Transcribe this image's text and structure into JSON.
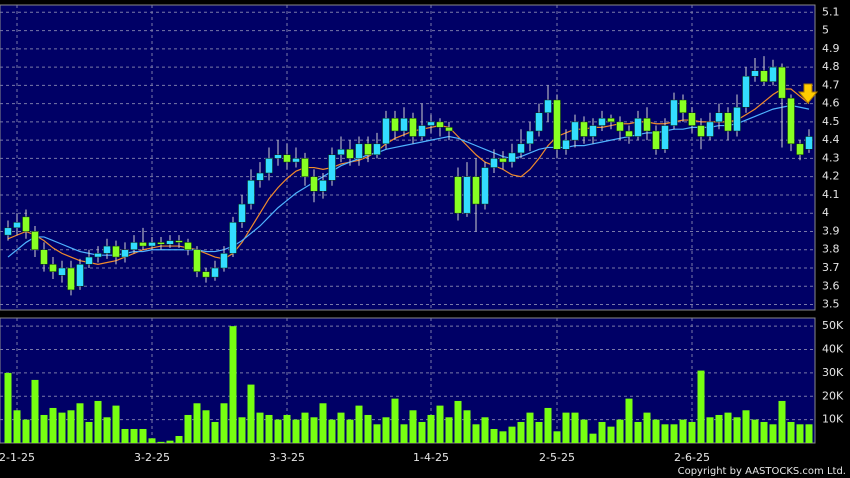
{
  "chart_data": [
    {
      "type": "candlestick",
      "up_color": "#33ddff",
      "down_color": "#88ff22",
      "grid": true,
      "open": [
        3.88,
        3.92,
        3.98,
        3.9,
        3.8,
        3.72,
        3.66,
        3.7,
        3.6,
        3.72,
        3.76,
        3.78,
        3.82,
        3.76,
        3.8,
        3.84,
        3.82,
        3.84,
        3.83,
        3.85,
        3.84,
        3.8,
        3.68,
        3.65,
        3.7,
        3.78,
        3.95,
        4.05,
        4.18,
        4.22,
        4.3,
        4.32,
        4.28,
        4.3,
        4.2,
        4.12,
        4.18,
        4.32,
        4.35,
        4.3,
        4.38,
        4.32,
        4.38,
        4.52,
        4.45,
        4.52,
        4.42,
        4.48,
        4.5,
        4.47,
        4.2,
        4.0,
        4.2,
        4.05,
        4.25,
        4.3,
        4.28,
        4.33,
        4.38,
        4.45,
        4.55,
        4.62,
        4.35,
        4.4,
        4.5,
        4.42,
        4.48,
        4.52,
        4.5,
        4.45,
        4.42,
        4.52,
        4.45,
        4.35,
        4.48,
        4.62,
        4.55,
        4.48,
        4.42,
        4.5,
        4.55,
        4.45,
        4.58,
        4.75,
        4.78,
        4.72,
        4.8,
        4.63,
        4.38,
        4.35
      ],
      "high": [
        3.96,
        4.0,
        4.02,
        3.93,
        3.84,
        3.76,
        3.74,
        3.74,
        3.75,
        3.8,
        3.82,
        3.86,
        3.85,
        3.84,
        3.88,
        3.92,
        3.87,
        3.87,
        3.88,
        3.88,
        3.86,
        3.82,
        3.7,
        3.74,
        3.82,
        3.98,
        4.1,
        4.24,
        4.28,
        4.36,
        4.4,
        4.38,
        4.36,
        4.33,
        4.24,
        4.22,
        4.36,
        4.42,
        4.4,
        4.42,
        4.42,
        4.44,
        4.56,
        4.56,
        4.58,
        4.55,
        4.6,
        4.54,
        4.52,
        4.5,
        4.25,
        4.28,
        4.3,
        4.28,
        4.35,
        4.34,
        4.38,
        4.46,
        4.5,
        4.6,
        4.7,
        4.65,
        4.46,
        4.54,
        4.53,
        4.52,
        4.56,
        4.54,
        4.53,
        4.48,
        4.56,
        4.58,
        4.48,
        4.52,
        4.66,
        4.65,
        4.58,
        4.52,
        4.55,
        4.6,
        4.58,
        4.65,
        4.8,
        4.85,
        4.86,
        4.84,
        4.82,
        4.65,
        4.4,
        4.46
      ],
      "low": [
        3.85,
        3.88,
        3.86,
        3.76,
        3.68,
        3.64,
        3.62,
        3.55,
        3.58,
        3.7,
        3.73,
        3.75,
        3.72,
        3.73,
        3.78,
        3.8,
        3.8,
        3.8,
        3.81,
        3.81,
        3.77,
        3.65,
        3.62,
        3.63,
        3.68,
        3.76,
        3.92,
        4.02,
        4.14,
        4.18,
        4.26,
        4.24,
        4.25,
        4.15,
        4.06,
        4.08,
        4.15,
        4.28,
        4.26,
        4.26,
        4.28,
        4.3,
        4.35,
        4.4,
        4.42,
        4.38,
        4.4,
        4.44,
        4.42,
        4.4,
        3.96,
        3.98,
        3.9,
        4.02,
        4.22,
        4.24,
        4.25,
        4.3,
        4.34,
        4.42,
        4.5,
        4.3,
        4.32,
        4.36,
        4.38,
        4.38,
        4.45,
        4.46,
        4.4,
        4.38,
        4.4,
        4.4,
        4.32,
        4.33,
        4.46,
        4.5,
        4.44,
        4.35,
        4.4,
        4.46,
        4.4,
        4.42,
        4.55,
        4.72,
        4.7,
        4.7,
        4.36,
        4.34,
        4.29,
        4.33
      ],
      "close": [
        3.92,
        3.95,
        3.9,
        3.8,
        3.72,
        3.68,
        3.7,
        3.58,
        3.72,
        3.76,
        3.78,
        3.82,
        3.76,
        3.8,
        3.84,
        3.82,
        3.84,
        3.83,
        3.85,
        3.84,
        3.8,
        3.68,
        3.65,
        3.7,
        3.78,
        3.95,
        4.05,
        4.18,
        4.22,
        4.3,
        4.32,
        4.28,
        4.3,
        4.2,
        4.12,
        4.18,
        4.32,
        4.35,
        4.3,
        4.38,
        4.32,
        4.38,
        4.52,
        4.45,
        4.52,
        4.42,
        4.48,
        4.5,
        4.47,
        4.45,
        4.0,
        4.2,
        4.05,
        4.25,
        4.3,
        4.28,
        4.33,
        4.38,
        4.45,
        4.55,
        4.62,
        4.35,
        4.4,
        4.5,
        4.42,
        4.48,
        4.52,
        4.5,
        4.45,
        4.42,
        4.52,
        4.45,
        4.35,
        4.48,
        4.62,
        4.55,
        4.48,
        4.42,
        4.5,
        4.55,
        4.45,
        4.58,
        4.75,
        4.78,
        4.72,
        4.8,
        4.63,
        4.38,
        4.32,
        4.42
      ],
      "series": [
        {
          "color": "#f08a2c",
          "values": [
            3.86,
            3.88,
            3.9,
            3.88,
            3.85,
            3.81,
            3.78,
            3.76,
            3.74,
            3.73,
            3.72,
            3.73,
            3.74,
            3.76,
            3.78,
            3.8,
            3.81,
            3.82,
            3.82,
            3.82,
            3.81,
            3.8,
            3.78,
            3.76,
            3.75,
            3.78,
            3.84,
            3.92,
            4.0,
            4.08,
            4.14,
            4.19,
            4.23,
            4.25,
            4.25,
            4.24,
            4.25,
            4.27,
            4.28,
            4.29,
            4.31,
            4.34,
            4.38,
            4.41,
            4.43,
            4.45,
            4.46,
            4.47,
            4.48,
            4.47,
            4.42,
            4.37,
            4.32,
            4.28,
            4.26,
            4.24,
            4.21,
            4.2,
            4.24,
            4.3,
            4.37,
            4.42,
            4.44,
            4.46,
            4.46,
            4.47,
            4.47,
            4.48,
            4.49,
            4.49,
            4.5,
            4.5,
            4.49,
            4.49,
            4.5,
            4.51,
            4.51,
            4.5,
            4.5,
            4.5,
            4.5,
            4.51,
            4.54,
            4.57,
            4.61,
            4.65,
            4.68,
            4.68,
            4.64,
            4.6
          ]
        },
        {
          "color": "#4fb3ff",
          "values": [
            3.76,
            3.8,
            3.84,
            3.87,
            3.87,
            3.85,
            3.83,
            3.81,
            3.79,
            3.78,
            3.77,
            3.77,
            3.77,
            3.78,
            3.79,
            3.79,
            3.8,
            3.8,
            3.8,
            3.8,
            3.8,
            3.8,
            3.79,
            3.79,
            3.8,
            3.82,
            3.85,
            3.89,
            3.93,
            3.98,
            4.03,
            4.07,
            4.11,
            4.14,
            4.17,
            4.2,
            4.23,
            4.26,
            4.28,
            4.3,
            4.32,
            4.33,
            4.35,
            4.36,
            4.37,
            4.38,
            4.39,
            4.4,
            4.41,
            4.42,
            4.41,
            4.39,
            4.37,
            4.35,
            4.33,
            4.31,
            4.3,
            4.31,
            4.33,
            4.35,
            4.36,
            4.36,
            4.36,
            4.37,
            4.37,
            4.38,
            4.39,
            4.4,
            4.41,
            4.42,
            4.43,
            4.44,
            4.44,
            4.45,
            4.46,
            4.46,
            4.47,
            4.47,
            4.47,
            4.48,
            4.48,
            4.49,
            4.51,
            4.53,
            4.55,
            4.57,
            4.58,
            4.59,
            4.58,
            4.57
          ]
        }
      ],
      "ylim": [
        3.47,
        5.14
      ],
      "yticks": [
        5.1,
        5,
        4.9,
        4.8,
        4.7,
        4.6,
        4.5,
        4.4,
        4.3,
        4.2,
        4.1,
        4,
        3.9,
        3.8,
        3.7,
        3.6,
        3.5
      ]
    },
    {
      "type": "bar",
      "color": "#77ff11",
      "grid": true,
      "categories": [
        null,
        "2-1-25",
        null,
        null,
        null,
        null,
        null,
        null,
        null,
        null,
        null,
        null,
        null,
        null,
        null,
        null,
        "3-2-25",
        null,
        null,
        null,
        null,
        null,
        null,
        null,
        null,
        null,
        null,
        null,
        null,
        null,
        null,
        "3-3-25",
        null,
        null,
        null,
        null,
        null,
        null,
        null,
        null,
        null,
        null,
        null,
        null,
        null,
        null,
        null,
        "1-4-25",
        null,
        null,
        null,
        null,
        null,
        null,
        null,
        null,
        null,
        null,
        null,
        null,
        null,
        "2-5-25",
        null,
        null,
        null,
        null,
        null,
        null,
        null,
        null,
        null,
        null,
        null,
        null,
        null,
        null,
        "2-6-25",
        null,
        null,
        null,
        null,
        null,
        null,
        null,
        null,
        null,
        null,
        null,
        null,
        null
      ],
      "values": [
        30000,
        14000,
        10000,
        27000,
        12000,
        15000,
        13000,
        14000,
        17000,
        9000,
        18000,
        11000,
        16000,
        6000,
        6000,
        6000,
        2000,
        500,
        1000,
        3000,
        12000,
        17000,
        14000,
        9000,
        17000,
        50000,
        11000,
        25000,
        13000,
        12000,
        10000,
        12000,
        10000,
        13000,
        11000,
        17000,
        10000,
        13000,
        10000,
        16000,
        12000,
        8000,
        11000,
        19000,
        8000,
        14000,
        9000,
        12000,
        16000,
        11000,
        18000,
        14000,
        8000,
        11000,
        6000,
        5000,
        7000,
        9000,
        13000,
        9000,
        15000,
        5000,
        13000,
        13000,
        10000,
        4000,
        9000,
        7000,
        10000,
        19000,
        9000,
        13000,
        10000,
        8000,
        8000,
        10000,
        9000,
        31000,
        11000,
        12000,
        13000,
        11000,
        14000,
        10000,
        9000,
        8000,
        18000,
        9000,
        8000,
        8000
      ],
      "ylim": [
        0,
        53500
      ],
      "yticks": [
        {
          "value": 10000,
          "label": "10K"
        },
        {
          "value": 20000,
          "label": "20K"
        },
        {
          "value": 30000,
          "label": "30K"
        },
        {
          "value": 40000,
          "label": "40K"
        },
        {
          "value": 50000,
          "label": "50K"
        }
      ]
    }
  ],
  "copyright": "Copyright by AASTOCKS.com Ltd."
}
